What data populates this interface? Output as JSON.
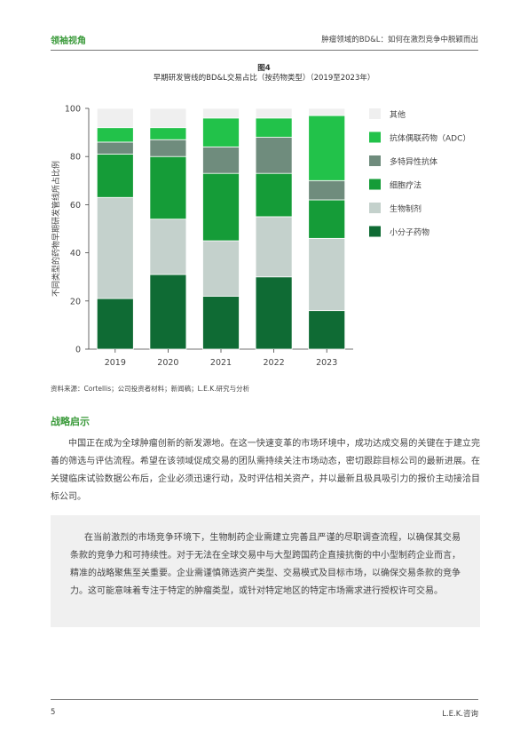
{
  "header": {
    "left": "领袖视角",
    "right": "肿瘤领域的BD&L：如何在激烈竞争中脱颖而出"
  },
  "figure": {
    "number": "图4",
    "title": "早期研发管线的BD&L交易占比（按药物类型）（2019至2023年）"
  },
  "chart_data": {
    "type": "bar",
    "stacked": true,
    "categories": [
      "2019",
      "2020",
      "2021",
      "2022",
      "2023"
    ],
    "ylabel": "不同类型的药物早期研发管线所占比例",
    "ylim": [
      0,
      100
    ],
    "yticks": [
      "0",
      "20",
      "40",
      "60",
      "80",
      "100"
    ],
    "legend_position": "right",
    "series": [
      {
        "name": "小分子药物",
        "color": "#0f6b34",
        "values": [
          21,
          31,
          22,
          30,
          16
        ]
      },
      {
        "name": "生物制剂",
        "color": "#c4d1cc",
        "values": [
          42,
          23,
          23,
          25,
          30
        ]
      },
      {
        "name": "细胞疗法",
        "color": "#159c38",
        "values": [
          18,
          26,
          28,
          18,
          16
        ]
      },
      {
        "name": "多特异性抗体",
        "color": "#6f8c7d",
        "values": [
          5,
          7,
          11,
          15,
          8
        ]
      },
      {
        "name": "抗体偶联药物（ADC）",
        "color": "#22c24a",
        "values": [
          6,
          5,
          12,
          8,
          27
        ]
      },
      {
        "name": "其他",
        "color": "#efefef",
        "values": [
          8,
          8,
          4,
          4,
          3
        ]
      }
    ]
  },
  "source": "资料来源：Cortellis；公司投资者材料；新闻稿；L.E.K.研究与分析",
  "section": {
    "title": "战略启示",
    "body": "中国正在成为全球肿瘤创新的新发源地。在这一快速变革的市场环境中，成功达成交易的关键在于建立完善的筛选与评估流程。希望在该领域促成交易的团队需持续关注市场动态，密切跟踪目标公司的最新进展。在关键临床试验数据公布后，企业必须迅速行动，及时评估相关资产，并以最新且极具吸引力的报价主动接洽目标公司。"
  },
  "callout": {
    "text": "在当前激烈的市场竞争环境下，生物制药企业需建立完善且严谨的尽职调查流程，以确保其交易条款的竞争力和可持续性。对于无法在全球交易中与大型跨国药企直接抗衡的中小型制药企业而言，精准的战略聚焦至关重要。企业需谨慎筛选资产类型、交易模式及目标市场，以确保交易条款的竞争力。这可能意味着专注于特定的肿瘤类型，或针对特定地区的特定市场需求进行授权许可交易。"
  },
  "footer": {
    "page": "5",
    "brand": "L.E.K.咨询"
  }
}
